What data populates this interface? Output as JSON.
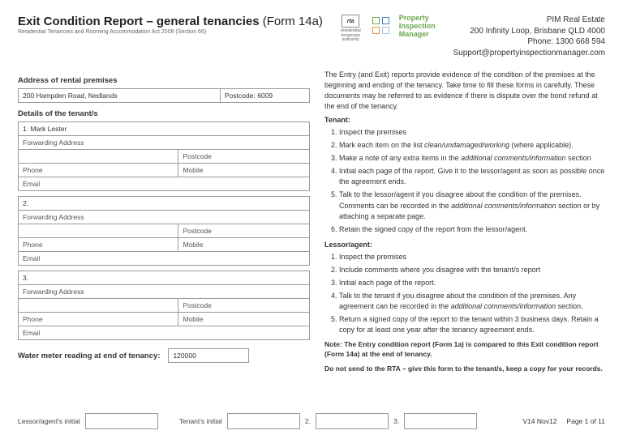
{
  "header": {
    "title_main": "Exit Condition Report – general tenancies",
    "title_form": "(Form 14a)",
    "subtitle": "Residential Tenancies and Rooming Accommodation Act 2008 (Section 66)",
    "rta_label": "rta",
    "rta_sub": "residential\ntenancies\nauthority",
    "pim_line1": "Property",
    "pim_line2": "Inspection",
    "pim_line3": "Manager",
    "company": {
      "name": "PIM Real Estate",
      "addr": "200 Infinity Loop, Brisbane QLD 4000",
      "phone": "Phone: 1300 668 594",
      "email": "Support@propertyinspectionmanager.com"
    }
  },
  "address_section": {
    "label": "Address of rental premises",
    "address": "200 Hampden Road, Nedlands",
    "postcode_label": "Postcode:",
    "postcode": "6009"
  },
  "tenants_label": "Details of the tenant/s",
  "tenants": [
    {
      "num": "1.",
      "name": "Mark Lester"
    },
    {
      "num": "2.",
      "name": ""
    },
    {
      "num": "3.",
      "name": ""
    }
  ],
  "field_labels": {
    "forwarding": "Forwarding Address",
    "postcode": "Postcode",
    "phone": "Phone",
    "mobile": "Mobile",
    "email": "Email"
  },
  "water": {
    "label": "Water meter reading at end of tenancy:",
    "value": "120000"
  },
  "instructions": {
    "intro": "The Entry (and Exit) reports provide evidence of the condition of the premises at the beginning and ending of the tenancy. Take time to fill these forms in carefully. These documents may be referred to as evidence if there is dispute over the bond refund at the end of the tenancy.",
    "tenant_head": "Tenant:",
    "tenant_steps": [
      "Inspect the premises",
      "Mark each item on the list <span class='em'>clean/undamaged/working</span> (where applicable).",
      "Make a note of any extra items in the <span class='em'>additional comments/information</span> section",
      "Initial each page of the report. Give it to the lessor/agent as soon as possible once the agreement ends.",
      "Talk to the lessor/agent if you disagree about the condition of the premises. Comments can be recorded in the <span class='em'>additional comments/information</span> section or by attaching a separate page.",
      "Retain the signed copy of the report from the lessor/agent."
    ],
    "lessor_head": "Lessor/agent:",
    "lessor_steps": [
      "Inspect the premises",
      "Include comments where you disagree with the tenant/s report",
      "Initial each page of the report.",
      "Talk to the tenant if you disagree about the condition of the premises. Any agreement can be recorded in the <span class='em'>additional comments/information</span> section.",
      "Return a signed copy of the report to the tenant within 3 business days. Retain a copy for at least one year after the tenancy agreement ends."
    ],
    "note1": "Note: The Entry condition report (Form 1a) is compared to this Exit condition report (Form 14a) at the end of tenancy.",
    "note2": "Do not send to the RTA – give this form to the tenant/s, keep a copy for your records."
  },
  "footer": {
    "lessor": "Lessor/agent's initial",
    "tenant": "Tenant's initial",
    "n2": "2.",
    "n3": "3.",
    "version": "V14 Nov12",
    "page": "Page 1 of 11"
  },
  "colors": {
    "pim_green": "#6aa84f",
    "pim_teal": "#3d85c6",
    "pim_orange": "#e69138",
    "pim_lblue": "#9fc5e8"
  }
}
